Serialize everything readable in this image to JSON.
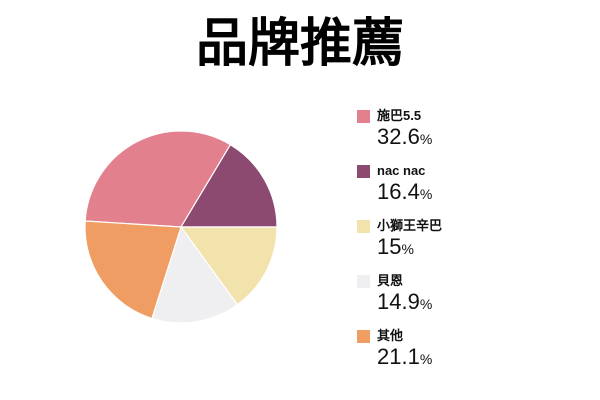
{
  "chart_data": {
    "type": "pie",
    "title": "品牌推薦",
    "unit": "%",
    "slices": [
      {
        "label": "施巴5.5",
        "value": 32.6,
        "display": "32.6",
        "color": "#e3808d"
      },
      {
        "label": "nac nac",
        "value": 16.4,
        "display": "16.4",
        "color": "#8c4a70"
      },
      {
        "label": "小獅王辛巴",
        "value": 15,
        "display": "15",
        "color": "#f2e2ab"
      },
      {
        "label": "貝恩",
        "value": 14.9,
        "display": "14.9",
        "color": "#efeff2"
      },
      {
        "label": "其他",
        "value": 21.1,
        "display": "21.1",
        "color": "#f09d64"
      }
    ],
    "start_angle_deg": 183.6,
    "direction": "clockwise",
    "legend_position": "right",
    "slice_border_color": "#ffffff",
    "background_color": "#ffffff"
  }
}
